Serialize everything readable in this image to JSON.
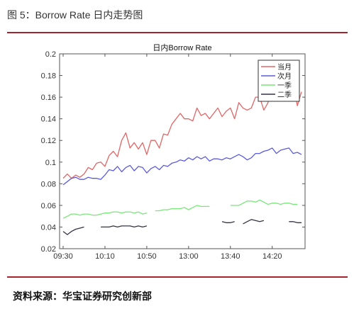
{
  "figure": {
    "title": "图 5：Borrow Rate 日内走势图",
    "source": "资料来源：华宝证券研究创新部"
  },
  "colors": {
    "rule": "#a4262c",
    "当月": "#e06666",
    "次月": "#5b5bdc",
    "一季": "#77e877",
    "二季": "#333344"
  },
  "chart_data": {
    "type": "line",
    "title": "日内Borrow Rate",
    "xlabel": "",
    "ylabel": "",
    "ylim": [
      0.02,
      0.2
    ],
    "yticks": [
      0.02,
      0.04,
      0.06,
      0.08,
      0.1,
      0.12,
      0.14,
      0.16,
      0.18,
      0.2
    ],
    "xlim": [
      0,
      57
    ],
    "xtick_labels": [
      {
        "x": 0,
        "label": "09:30"
      },
      {
        "x": 10,
        "label": "10:10"
      },
      {
        "x": 20,
        "label": "10:50"
      },
      {
        "x": 30,
        "label": "13:00"
      },
      {
        "x": 40,
        "label": "13:40"
      },
      {
        "x": 50,
        "label": "14:20"
      }
    ],
    "grid": false,
    "legend_position": "top-right",
    "series": [
      {
        "name": "当月",
        "values": [
          0.085,
          0.089,
          0.085,
          0.088,
          0.086,
          0.089,
          0.095,
          0.093,
          0.099,
          0.1,
          0.096,
          0.106,
          0.11,
          0.105,
          0.12,
          0.127,
          0.113,
          0.118,
          0.112,
          0.118,
          0.107,
          0.12,
          0.12,
          0.113,
          0.126,
          0.125,
          0.135,
          0.14,
          0.145,
          0.14,
          0.14,
          0.138,
          0.15,
          0.143,
          0.145,
          0.14,
          0.145,
          0.15,
          0.142,
          0.147,
          0.15,
          0.14,
          0.155,
          0.15,
          0.148,
          0.15,
          0.16,
          0.16,
          0.148,
          0.155,
          0.17,
          0.168,
          0.16,
          0.16,
          0.175,
          0.175,
          0.152,
          0.165
        ]
      },
      {
        "name": "次月",
        "values": [
          0.079,
          0.082,
          0.085,
          0.086,
          0.084,
          0.084,
          0.086,
          0.085,
          0.085,
          0.084,
          0.088,
          0.093,
          0.092,
          0.096,
          0.091,
          0.095,
          0.097,
          0.092,
          0.096,
          0.095,
          0.09,
          0.094,
          0.096,
          0.093,
          0.097,
          0.096,
          0.099,
          0.1,
          0.102,
          0.101,
          0.104,
          0.102,
          0.105,
          0.103,
          0.105,
          0.101,
          0.103,
          0.103,
          0.102,
          0.104,
          0.103,
          0.105,
          0.107,
          0.105,
          0.102,
          0.104,
          0.108,
          0.108,
          0.11,
          0.111,
          0.113,
          0.108,
          0.111,
          0.112,
          0.113,
          0.108,
          0.109,
          0.107
        ]
      },
      {
        "name": "一季",
        "values": [
          0.048,
          0.05,
          0.052,
          0.052,
          0.051,
          0.052,
          0.052,
          0.051,
          0.051,
          0.052,
          0.053,
          0.053,
          0.054,
          0.054,
          0.053,
          0.054,
          0.054,
          0.053,
          0.054,
          0.052,
          0.053,
          null,
          0.055,
          0.055,
          0.056,
          0.056,
          0.057,
          0.057,
          0.057,
          0.058,
          0.056,
          0.058,
          0.06,
          0.059,
          0.059,
          0.059,
          null,
          null,
          null,
          null,
          0.06,
          0.06,
          0.06,
          0.062,
          0.064,
          0.064,
          0.063,
          0.065,
          0.063,
          0.061,
          0.062,
          0.062,
          0.061,
          0.062,
          0.062,
          0.061,
          0.061,
          null
        ]
      },
      {
        "name": "二季",
        "values": [
          0.036,
          0.033,
          0.036,
          0.038,
          0.039,
          0.04,
          null,
          null,
          null,
          0.04,
          0.04,
          0.04,
          0.041,
          0.04,
          0.041,
          0.041,
          0.041,
          0.04,
          0.041,
          0.04,
          0.041,
          null,
          null,
          null,
          null,
          null,
          null,
          null,
          null,
          null,
          null,
          null,
          null,
          null,
          null,
          null,
          null,
          null,
          0.045,
          0.044,
          0.044,
          0.045,
          null,
          0.043,
          0.045,
          0.047,
          0.046,
          0.045,
          0.046,
          null,
          null,
          null,
          null,
          null,
          0.045,
          0.045,
          0.044,
          0.044
        ]
      }
    ]
  }
}
